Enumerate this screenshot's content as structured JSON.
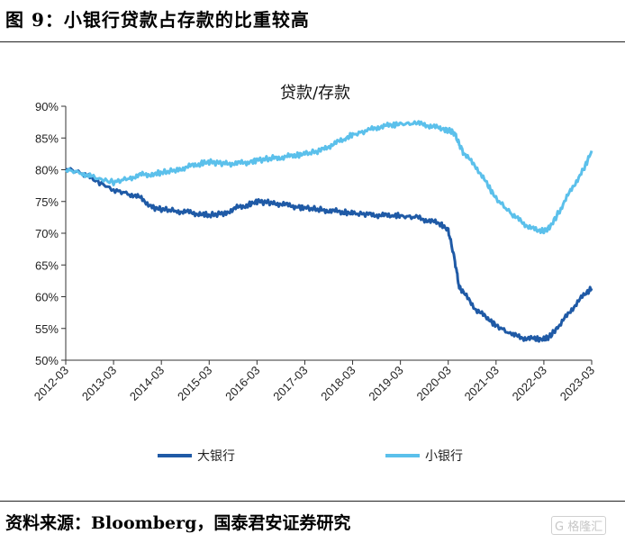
{
  "figure": {
    "title": "图 9：小银行贷款占存款的比重较高",
    "source": "资料来源：Bloomberg，国泰君安证券研究",
    "watermark": "格隆汇"
  },
  "chart_data": {
    "type": "line",
    "title": "贷款/存款",
    "xlabel": "",
    "ylabel": "",
    "ylim": [
      50,
      90
    ],
    "yticks": [
      "50%",
      "55%",
      "60%",
      "65%",
      "70%",
      "75%",
      "80%",
      "85%",
      "90%"
    ],
    "xticks": [
      "2012-03",
      "2013-03",
      "2014-03",
      "2015-03",
      "2016-03",
      "2017-03",
      "2018-03",
      "2019-03",
      "2020-03",
      "2021-03",
      "2022-03",
      "2023-03"
    ],
    "legend_position": "bottom",
    "grid": false,
    "x": [
      2012.17,
      2012.5,
      2012.75,
      2013.17,
      2013.5,
      2013.75,
      2014.0,
      2014.17,
      2014.5,
      2014.75,
      2015.0,
      2015.17,
      2015.5,
      2015.75,
      2016.0,
      2016.17,
      2016.5,
      2016.75,
      2017.0,
      2017.17,
      2017.5,
      2017.75,
      2018.0,
      2018.17,
      2018.5,
      2018.75,
      2019.0,
      2019.17,
      2019.5,
      2019.75,
      2020.0,
      2020.17,
      2020.3,
      2020.4,
      2020.5,
      2020.75,
      2021.0,
      2021.17,
      2021.5,
      2021.75,
      2022.0,
      2022.17,
      2022.3,
      2022.5,
      2022.75,
      2023.0,
      2023.17
    ],
    "series": [
      {
        "name": "大银行",
        "color": "#1f5aa6",
        "values": [
          80.2,
          79.5,
          78.5,
          76.8,
          76.2,
          75.5,
          74.0,
          73.8,
          73.5,
          73.3,
          73.0,
          72.8,
          73.2,
          74.0,
          74.5,
          75.0,
          74.8,
          74.5,
          74.2,
          74.0,
          73.7,
          73.5,
          73.3,
          73.1,
          73.0,
          72.8,
          72.8,
          72.7,
          72.5,
          72.0,
          71.5,
          70.5,
          66.0,
          61.5,
          60.5,
          58.0,
          56.5,
          55.5,
          54.0,
          53.5,
          53.3,
          53.3,
          53.8,
          55.5,
          58.0,
          60.2,
          61.3
        ]
      },
      {
        "name": "小银行",
        "color": "#5bc0eb",
        "values": [
          80.0,
          79.5,
          78.8,
          78.0,
          78.7,
          79.2,
          79.3,
          79.5,
          80.0,
          80.5,
          81.0,
          81.2,
          81.0,
          81.0,
          81.2,
          81.5,
          81.8,
          82.0,
          82.3,
          82.5,
          83.0,
          84.0,
          84.8,
          85.5,
          86.2,
          86.8,
          87.0,
          87.2,
          87.3,
          87.0,
          86.5,
          86.2,
          85.8,
          84.0,
          82.5,
          80.5,
          77.5,
          75.5,
          73.0,
          71.5,
          70.5,
          70.3,
          71.0,
          73.5,
          77.0,
          80.0,
          83.0
        ]
      }
    ]
  }
}
